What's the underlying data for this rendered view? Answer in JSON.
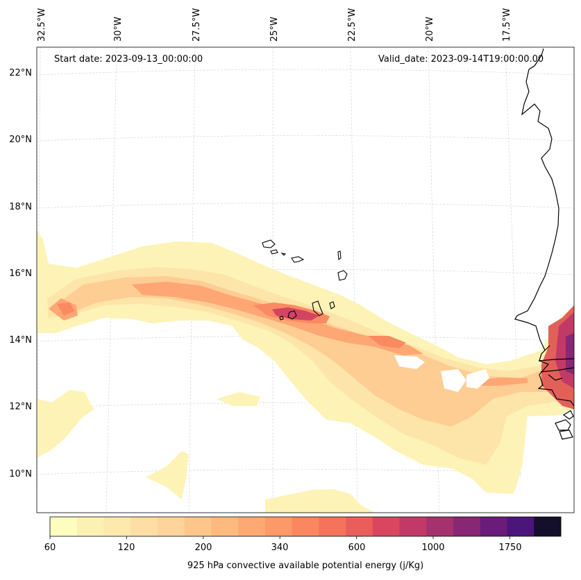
{
  "map": {
    "start_date": "Start date: 2023-09-13_00:00:00",
    "valid_date": "Valid_date: 2023-09-14T19:00:00.00",
    "longitude_labels": [
      "32.5°W",
      "30°W",
      "27.5°W",
      "25°W",
      "22.5°W",
      "20°W",
      "17.5°W"
    ],
    "latitude_labels": [
      "22°N",
      "20°N",
      "18°N",
      "16°N",
      "14°N",
      "12°N",
      "10°N"
    ],
    "variable": "925 hPa convective available potential energy",
    "islands": [
      "Santo Antão",
      "São Vicente",
      "São Nicolau",
      "Sal",
      "Boa Vista",
      "Maio",
      "Santiago",
      "Fogo",
      "Brava"
    ]
  },
  "colorbar": {
    "title": "925 hPa convective available potential energy (j/Kg)",
    "tick_labels": [
      "60",
      "120",
      "200",
      "340",
      "600",
      "1000",
      "1750"
    ],
    "colors": [
      "#fcfdbf",
      "#fcf1b4",
      "#fde8ae",
      "#fedea4",
      "#fed49a",
      "#fec68b",
      "#feb97e",
      "#fea973",
      "#fd9869",
      "#fb8761",
      "#f5735c",
      "#e95d5b",
      "#d8475f",
      "#c13a67",
      "#a5316e",
      "#882774",
      "#6a1c7a",
      "#4c157a",
      "#14102b"
    ]
  }
}
